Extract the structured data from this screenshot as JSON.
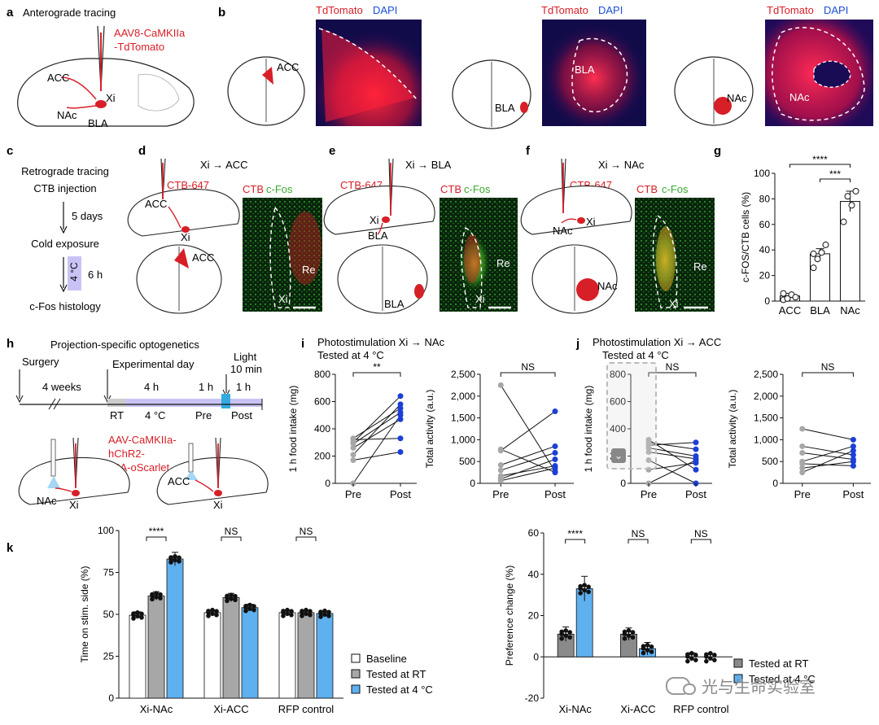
{
  "panels": {
    "a": {
      "letter": "a",
      "title": "Anterograde tracing",
      "virus_line1": "AAV8-CaMKIIa",
      "virus_line2": "-TdTomato",
      "acc": "ACC",
      "nac": "NAc",
      "bla": "BLA",
      "xi": "Xi"
    },
    "b": {
      "letter": "b",
      "stain_red": "TdTomato",
      "stain_blue": "DAPI",
      "acc": "ACC",
      "bla": "BLA",
      "nac": "NAc"
    },
    "c": {
      "letter": "c",
      "lines": [
        "Retrograde tracing",
        "CTB injection",
        "5 days",
        "Cold exposure",
        "6 h",
        "c-Fos histology"
      ],
      "temp": "4 °C"
    },
    "d": {
      "letter": "d",
      "title": "Xi → ACC",
      "tracer": "CTB-647",
      "acc": "ACC",
      "xi": "Xi",
      "stain_red": "CTB",
      "stain_green": "c-Fos",
      "re": "Re"
    },
    "e": {
      "letter": "e",
      "title": "Xi → BLA",
      "tracer": "CTB-647",
      "xi": "Xi",
      "bla": "BLA",
      "stain_red": "CTB",
      "stain_green": "c-Fos",
      "re": "Re"
    },
    "f": {
      "letter": "f",
      "title": "Xi → NAc",
      "tracer": "CTB-647",
      "xi": "Xi",
      "nac": "NAc",
      "stain_red": "CTB",
      "stain_green": "c-Fos",
      "re": "Re"
    },
    "h": {
      "letter": "h",
      "title": "Projection-specific optogenetics",
      "surgery": "Surgery",
      "weeks": "4 weeks",
      "exp_day": "Experimental day",
      "h4": "4 h",
      "h1a": "1 h",
      "light": "Light",
      "light_dur": "10 min",
      "h1b": "1 h",
      "rt": "RT",
      "temp": "4 °C",
      "pre": "Pre",
      "post": "Post",
      "virus_lines": [
        "AAV-CaMKIIa-",
        "hChR2-",
        "p2A-oScarlet"
      ],
      "nac": "NAc",
      "xi": "Xi",
      "acc": "ACC"
    },
    "i": {
      "letter": "i",
      "title1": "Photostimulation Xi → NAc",
      "title2": "Tested at 4 °C"
    },
    "j": {
      "letter": "j",
      "title1": "Photostimulation Xi → ACC",
      "title2": "Tested at 4 °C"
    },
    "k": {
      "letter": "k"
    }
  },
  "legend_k": {
    "baseline": "Baseline",
    "rt": "Tested at RT",
    "cold": "Tested at 4 °C"
  },
  "legend_k2": {
    "rt": "Tested at RT",
    "cold": "Tested at 4 °C"
  },
  "watermark": "光与生命实验室",
  "colors": {
    "red": "#d71f27",
    "blue": "#1c4fd8",
    "gray": "#a7a7a7",
    "lightblue": "#5fb0ef",
    "darkgray": "#8a8a8a",
    "blue_dot": "#1c3fd6"
  },
  "chart_data": [
    {
      "id": "g",
      "type": "bar",
      "categories": [
        "ACC",
        "BLA",
        "NAc"
      ],
      "values": [
        4,
        37,
        78
      ],
      "errors": [
        2,
        4,
        8
      ],
      "points": [
        [
          1,
          2,
          5,
          3,
          6
        ],
        [
          26,
          33,
          38,
          44,
          37
        ],
        [
          62,
          82,
          75,
          86
        ]
      ],
      "ylabel": "c-FOS/CTB cells (%)",
      "ylim": [
        0,
        100
      ],
      "yticks": [
        0,
        20,
        40,
        60,
        80,
        100
      ],
      "sig": [
        {
          "from": 0,
          "to": 2,
          "label": "****"
        },
        {
          "from": 1,
          "to": 2,
          "label": "***"
        }
      ]
    },
    {
      "id": "i1",
      "type": "line",
      "categories": [
        "Pre",
        "Post"
      ],
      "ylabel": "1 h food intake (mg)",
      "ylim": [
        0,
        800
      ],
      "yticks": [
        0,
        200,
        400,
        600,
        800
      ],
      "pairs": [
        [
          0,
          500
        ],
        [
          170,
          230
        ],
        [
          210,
          580
        ],
        [
          260,
          470
        ],
        [
          290,
          520
        ],
        [
          300,
          640
        ],
        [
          320,
          330
        ],
        [
          330,
          550
        ]
      ],
      "sig": "**"
    },
    {
      "id": "i2",
      "type": "line",
      "categories": [
        "Pre",
        "Post"
      ],
      "ylabel": "Total activity (a.u.)",
      "ylim": [
        0,
        2500
      ],
      "yticks": [
        "0",
        "500",
        "1,000",
        "1,500",
        "2,000",
        "2,500"
      ],
      "ytickvals": [
        0,
        500,
        1000,
        1500,
        2000,
        2500
      ],
      "pairs": [
        [
          2250,
          280
        ],
        [
          780,
          250
        ],
        [
          750,
          1650
        ],
        [
          420,
          850
        ],
        [
          300,
          700
        ],
        [
          170,
          400
        ],
        [
          100,
          550
        ],
        [
          60,
          350
        ]
      ],
      "sig": "NS"
    },
    {
      "id": "j1",
      "type": "line",
      "categories": [
        "Pre",
        "Post"
      ],
      "ylabel": "1 h food intake (mg)",
      "ylim": [
        0,
        800
      ],
      "yticks": [
        0,
        200,
        400,
        600,
        800
      ],
      "pairs": [
        [
          320,
          100
        ],
        [
          300,
          250
        ],
        [
          280,
          300
        ],
        [
          260,
          200
        ],
        [
          230,
          180
        ],
        [
          170,
          0
        ],
        [
          100,
          150
        ],
        [
          0,
          170
        ]
      ],
      "sig": "NS"
    },
    {
      "id": "j2",
      "type": "line",
      "categories": [
        "Pre",
        "Post"
      ],
      "ylabel": "Total activity (a.u.)",
      "ylim": [
        0,
        2500
      ],
      "yticks": [
        "0",
        "500",
        "1,000",
        "1,500",
        "2,000",
        "2,500"
      ],
      "ytickvals": [
        0,
        500,
        1000,
        1500,
        2000,
        2500
      ],
      "pairs": [
        [
          1250,
          1000
        ],
        [
          850,
          650
        ],
        [
          700,
          550
        ],
        [
          500,
          850
        ],
        [
          450,
          400
        ],
        [
          350,
          500
        ],
        [
          250,
          750
        ]
      ],
      "sig": "NS"
    },
    {
      "id": "k1",
      "type": "bar",
      "groups": [
        "Xi-NAc",
        "Xi-ACC",
        "RFP control"
      ],
      "series": [
        {
          "name": "Baseline",
          "values": [
            49.5,
            51,
            51
          ]
        },
        {
          "name": "Tested at RT",
          "values": [
            61,
            60,
            51
          ]
        },
        {
          "name": "Tested at 4 °C",
          "values": [
            83,
            54,
            50.5
          ]
        }
      ],
      "errors": [
        [
          2,
          2.5,
          4
        ],
        [
          1,
          2.5,
          2
        ],
        [
          1,
          1,
          1
        ]
      ],
      "ylabel": "Time on stim. side (%)",
      "ylim": [
        0,
        100
      ],
      "yticks": [
        0,
        25,
        50,
        75,
        100
      ],
      "sig": [
        "****",
        "NS",
        "NS"
      ]
    },
    {
      "id": "k2",
      "type": "bar",
      "groups": [
        "Xi-NAc",
        "Xi-ACC",
        "RFP control"
      ],
      "series": [
        {
          "name": "Tested at RT",
          "values": [
            11,
            11,
            0
          ]
        },
        {
          "name": "Tested at 4 °C",
          "values": [
            33,
            4,
            0
          ]
        }
      ],
      "errors": [
        [
          3.5,
          6
        ],
        [
          3,
          3
        ],
        [
          2,
          1.5
        ]
      ],
      "ylabel": "Preference change (%)",
      "ylim": [
        -20,
        60
      ],
      "yticks": [
        -20,
        0,
        20,
        40,
        60
      ],
      "sig": [
        "****",
        "NS",
        "NS"
      ]
    }
  ]
}
